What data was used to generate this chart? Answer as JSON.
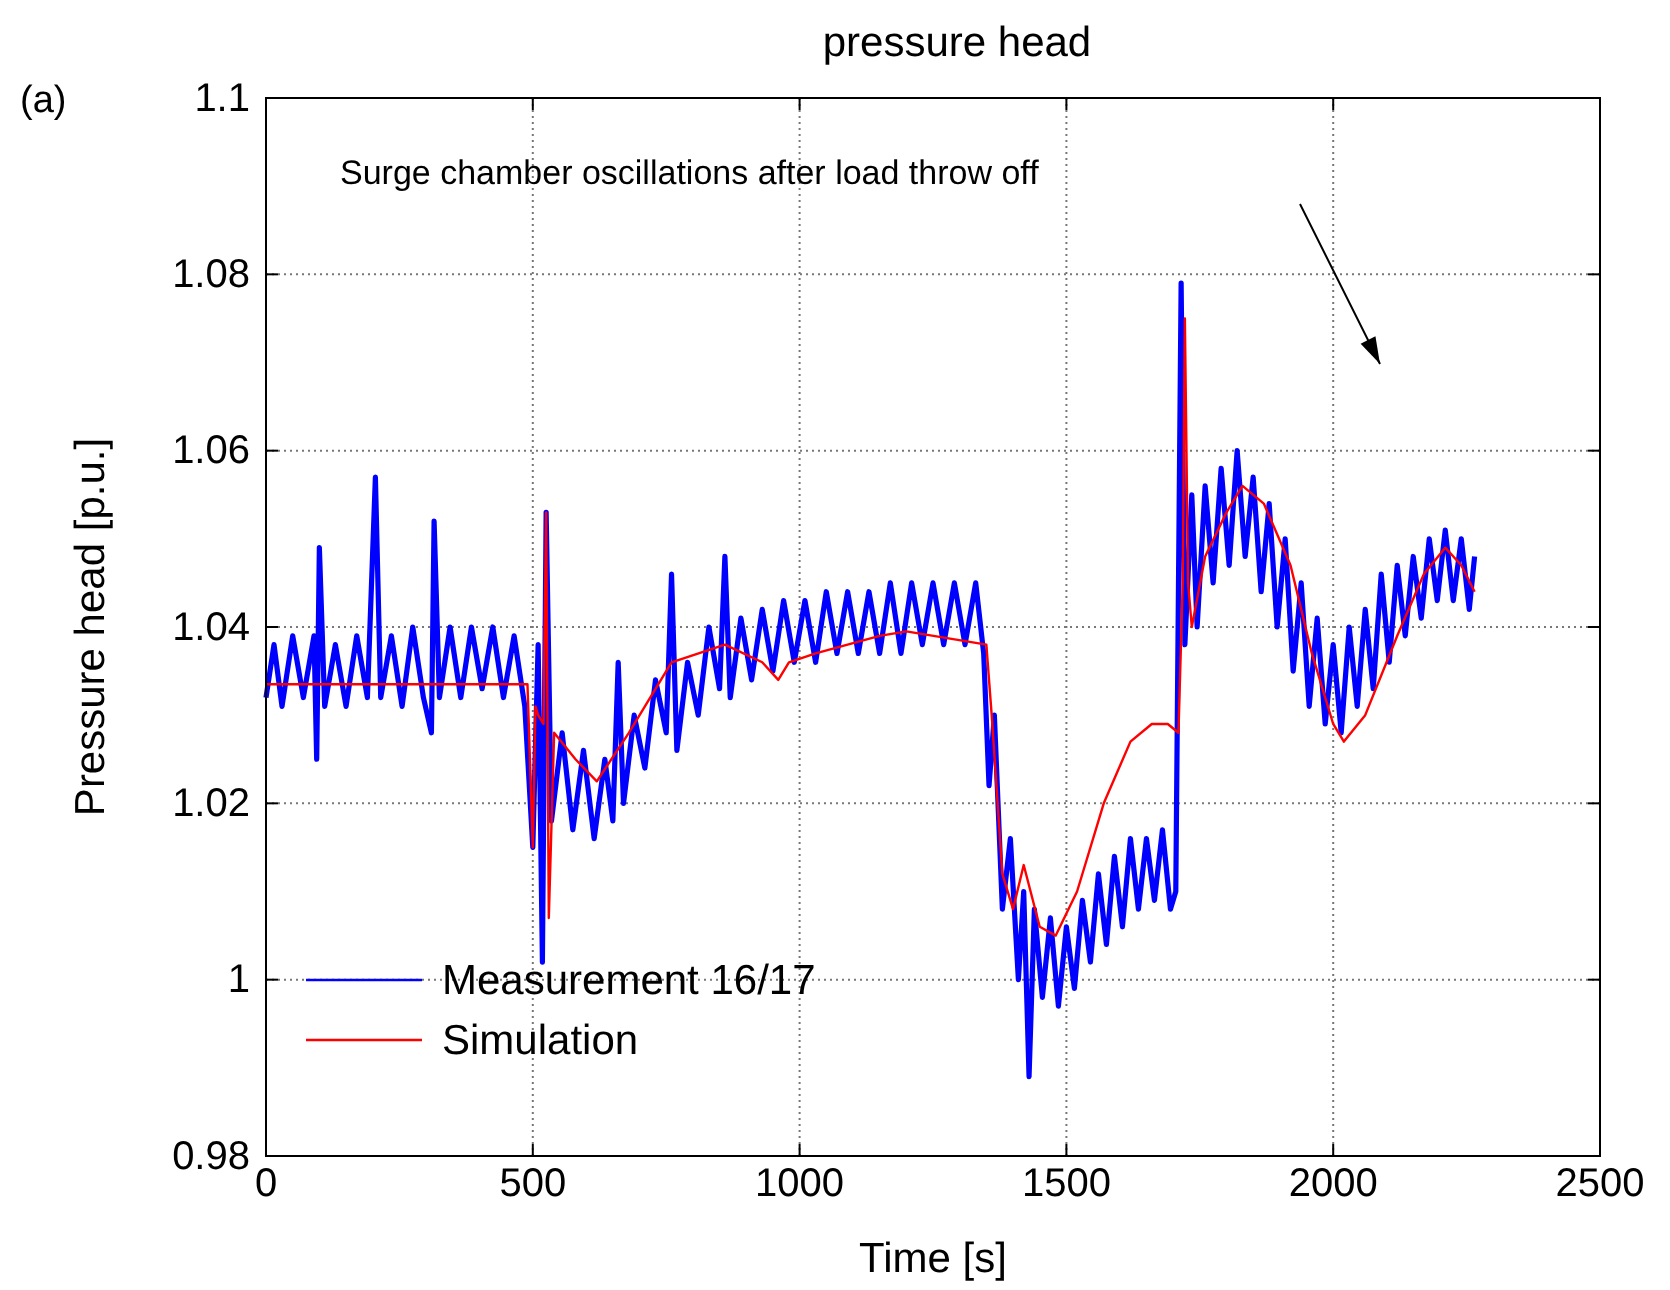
{
  "chart_data": {
    "type": "line",
    "title": "pressure head",
    "xlabel": "Time [s]",
    "ylabel": "Pressure head [p.u.]",
    "annotations": [
      "(a)",
      "Surge chamber oscillations after load throw off"
    ],
    "xlim": [
      0,
      2500
    ],
    "xticks": [
      0,
      500,
      1000,
      1500,
      2000,
      2500
    ],
    "ylim": [
      0.98,
      1.1
    ],
    "yticks": [
      {
        "value": 0.98,
        "label": "0.98"
      },
      {
        "value": 1.0,
        "label": "1"
      },
      {
        "value": 1.02,
        "label": "1.02"
      },
      {
        "value": 1.04,
        "label": "1.04"
      },
      {
        "value": 1.06,
        "label": "1.06"
      },
      {
        "value": 1.08,
        "label": "1.08"
      },
      {
        "value": 1.1,
        "label": "1.1"
      }
    ],
    "grid": true,
    "legend": "bottom left",
    "line_style": "solid",
    "marker": "none",
    "series": [
      {
        "name": "Measurement 16/17",
        "color": "#0000ff",
        "x": [
          0,
          15,
          30,
          50,
          70,
          90,
          95,
          100,
          110,
          130,
          150,
          170,
          190,
          205,
          215,
          235,
          255,
          275,
          295,
          310,
          315,
          325,
          345,
          365,
          385,
          405,
          425,
          445,
          465,
          485,
          500,
          510,
          518,
          525,
          535,
          555,
          575,
          595,
          615,
          635,
          650,
          660,
          670,
          690,
          710,
          730,
          750,
          760,
          770,
          790,
          810,
          830,
          850,
          860,
          870,
          890,
          910,
          930,
          950,
          970,
          990,
          1010,
          1030,
          1050,
          1070,
          1090,
          1110,
          1130,
          1150,
          1170,
          1190,
          1210,
          1230,
          1250,
          1270,
          1290,
          1310,
          1330,
          1345,
          1355,
          1365,
          1380,
          1395,
          1410,
          1420,
          1430,
          1440,
          1455,
          1470,
          1485,
          1500,
          1515,
          1530,
          1545,
          1560,
          1575,
          1590,
          1605,
          1620,
          1635,
          1650,
          1665,
          1680,
          1695,
          1705,
          1715,
          1722,
          1735,
          1745,
          1760,
          1775,
          1790,
          1805,
          1820,
          1835,
          1850,
          1865,
          1880,
          1895,
          1910,
          1925,
          1940,
          1955,
          1970,
          1985,
          2000,
          2015,
          2030,
          2045,
          2060,
          2075,
          2090,
          2105,
          2120,
          2135,
          2150,
          2165,
          2180,
          2195,
          2210,
          2225,
          2240,
          2255,
          2265
        ],
        "values": [
          1.032,
          1.038,
          1.031,
          1.039,
          1.032,
          1.039,
          1.025,
          1.049,
          1.031,
          1.038,
          1.031,
          1.039,
          1.032,
          1.057,
          1.032,
          1.039,
          1.031,
          1.04,
          1.032,
          1.028,
          1.052,
          1.032,
          1.04,
          1.032,
          1.04,
          1.033,
          1.04,
          1.032,
          1.039,
          1.031,
          1.015,
          1.038,
          1.002,
          1.053,
          1.018,
          1.028,
          1.017,
          1.026,
          1.016,
          1.025,
          1.018,
          1.036,
          1.02,
          1.03,
          1.024,
          1.034,
          1.028,
          1.046,
          1.026,
          1.036,
          1.03,
          1.04,
          1.033,
          1.048,
          1.032,
          1.041,
          1.034,
          1.042,
          1.035,
          1.043,
          1.036,
          1.043,
          1.036,
          1.044,
          1.037,
          1.044,
          1.037,
          1.044,
          1.037,
          1.045,
          1.037,
          1.045,
          1.038,
          1.045,
          1.038,
          1.045,
          1.038,
          1.045,
          1.037,
          1.022,
          1.03,
          1.008,
          1.016,
          1.0,
          1.01,
          0.989,
          1.008,
          0.998,
          1.007,
          0.997,
          1.006,
          0.999,
          1.009,
          1.002,
          1.012,
          1.004,
          1.014,
          1.006,
          1.016,
          1.008,
          1.016,
          1.009,
          1.017,
          1.008,
          1.01,
          1.079,
          1.038,
          1.055,
          1.04,
          1.056,
          1.045,
          1.058,
          1.047,
          1.06,
          1.048,
          1.057,
          1.044,
          1.054,
          1.04,
          1.05,
          1.035,
          1.045,
          1.031,
          1.041,
          1.029,
          1.038,
          1.028,
          1.04,
          1.031,
          1.042,
          1.033,
          1.046,
          1.036,
          1.047,
          1.039,
          1.048,
          1.041,
          1.05,
          1.043,
          1.051,
          1.043,
          1.05,
          1.042,
          1.048
        ]
      },
      {
        "name": "Simulation",
        "color": "#ff0000",
        "x": [
          0,
          490,
          500,
          505,
          510,
          520,
          525,
          530,
          540,
          580,
          620,
          680,
          760,
          860,
          930,
          960,
          980,
          1030,
          1150,
          1200,
          1350,
          1360,
          1380,
          1400,
          1420,
          1450,
          1480,
          1520,
          1570,
          1620,
          1660,
          1690,
          1710,
          1718,
          1722,
          1728,
          1735,
          1760,
          1800,
          1830,
          1870,
          1920,
          1960,
          2000,
          2020,
          2060,
          2120,
          2170,
          2210,
          2240,
          2265
        ],
        "values": [
          1.0335,
          1.0335,
          1.015,
          1.031,
          1.03,
          1.029,
          1.053,
          1.007,
          1.028,
          1.025,
          1.0225,
          1.028,
          1.036,
          1.038,
          1.036,
          1.034,
          1.036,
          1.037,
          1.039,
          1.0395,
          1.038,
          1.03,
          1.012,
          1.008,
          1.013,
          1.006,
          1.005,
          1.01,
          1.02,
          1.027,
          1.029,
          1.029,
          1.028,
          1.045,
          1.075,
          1.045,
          1.04,
          1.048,
          1.053,
          1.056,
          1.054,
          1.047,
          1.037,
          1.029,
          1.027,
          1.03,
          1.039,
          1.046,
          1.049,
          1.047,
          1.044
        ]
      }
    ]
  }
}
